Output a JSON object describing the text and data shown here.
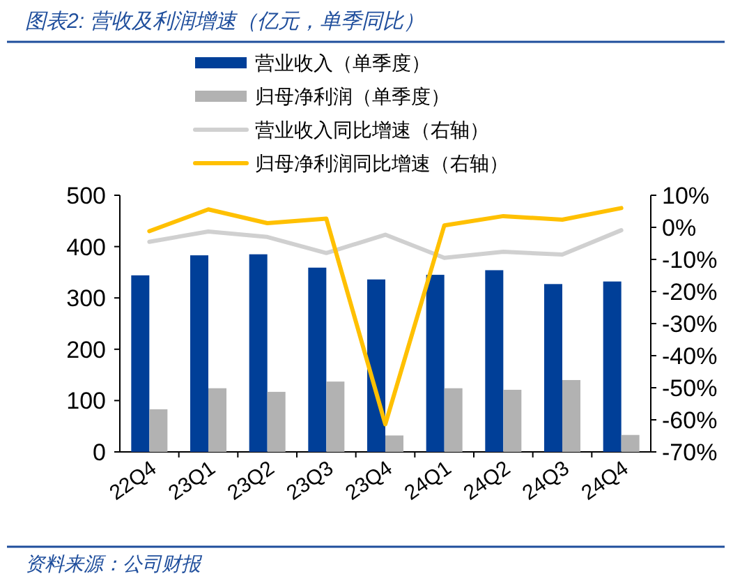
{
  "chart_data": {
    "type": "bar",
    "title": "图表2:  营收及利润增速（亿元，单季同比）",
    "categories": [
      "22Q4",
      "23Q1",
      "23Q2",
      "23Q3",
      "23Q4",
      "24Q1",
      "24Q2",
      "24Q3",
      "24Q4"
    ],
    "series": [
      {
        "name": "营业收入（单季度）",
        "color": "#003f98",
        "values": [
          344,
          383,
          385,
          359,
          336,
          345,
          354,
          327,
          332
        ]
      },
      {
        "name": "归母净利润（单季度）",
        "color": "#b2b2b2",
        "values": [
          83,
          124,
          117,
          137,
          32,
          124,
          121,
          140,
          33
        ]
      },
      {
        "name": "营业收入同比增速（右轴）",
        "type": "line",
        "axis": "y2",
        "color": "#d0d0d0",
        "values": [
          -4.5,
          -1.3,
          -3,
          -8,
          -2.3,
          -9.5,
          -7.6,
          -8.5,
          -0.9
        ]
      },
      {
        "name": "归母净利润同比增速（右轴）",
        "type": "line",
        "axis": "y2",
        "color": "#ffc000",
        "values": [
          -1.2,
          5.6,
          1.3,
          2.7,
          -61.4,
          0.6,
          3.5,
          2.4,
          6
        ]
      }
    ],
    "ylim": [
      0,
      500
    ],
    "yticks": [
      0,
      100,
      200,
      300,
      400,
      500
    ],
    "y2lim": [
      -70,
      10
    ],
    "y2ticks": [
      {
        "value": -70,
        "label": "-70%"
      },
      {
        "value": -60,
        "label": "-60%"
      },
      {
        "value": -50,
        "label": "-50%"
      },
      {
        "value": -40,
        "label": "-40%"
      },
      {
        "value": -30,
        "label": "-30%"
      },
      {
        "value": -20,
        "label": "-20%"
      },
      {
        "value": -10,
        "label": "-10%"
      },
      {
        "value": 0,
        "label": "0%"
      },
      {
        "value": 10,
        "label": "10%"
      }
    ],
    "legend": "top",
    "annotations": [
      "资料来源：公司财报"
    ]
  }
}
